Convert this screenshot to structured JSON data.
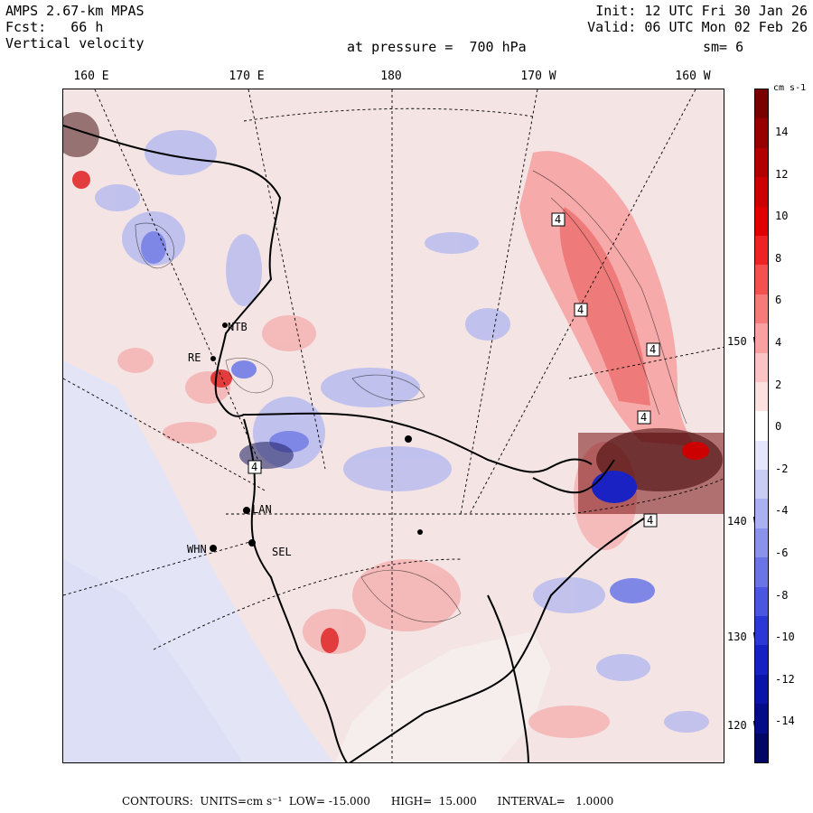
{
  "header": {
    "model": "AMPS 2.67-km MPAS",
    "forecast": "Fcst:   66 h",
    "field": "Vertical velocity",
    "init": "Init: 12 UTC Fri 30 Jan 26",
    "valid": "Valid: 06 UTC Mon 02 Feb 26",
    "level": "at pressure =  700 hPa",
    "smooth": "sm= 6"
  },
  "longitude_labels": [
    "160 E",
    "170 E",
    "180",
    "170 W",
    "160 W"
  ],
  "latitude_labels": [
    "150 W",
    "140 W",
    "130 W",
    "120 W"
  ],
  "stations": [
    "NTB",
    "RE",
    "LAN",
    "WHN",
    "SEL",
    "4",
    "4",
    "4",
    "4",
    "4",
    "4"
  ],
  "colorbar": {
    "unit": "cm s-1",
    "ticks": [
      "14",
      "12",
      "10",
      "8",
      "6",
      "4",
      "2",
      "0",
      "-2",
      "-4",
      "-6",
      "-8",
      "-10",
      "-12",
      "-14"
    ],
    "colors": [
      "#7a0000",
      "#960000",
      "#b20000",
      "#cc0000",
      "#e00000",
      "#ee2222",
      "#f45050",
      "#f77a7a",
      "#f9a0a0",
      "#fbc3c3",
      "#fde0e0",
      "#ffffff",
      "#e4e6fb",
      "#c9cdf6",
      "#aab0f1",
      "#8a92ec",
      "#6a74e6",
      "#4a56e0",
      "#2a38d6",
      "#1422c4",
      "#0a14a8",
      "#050c8a",
      "#020664"
    ]
  },
  "footer": "CONTOURS:  UNITS=cm s⁻¹  LOW= -15.000      HIGH=  15.000      INTERVAL=   1.0000"
}
